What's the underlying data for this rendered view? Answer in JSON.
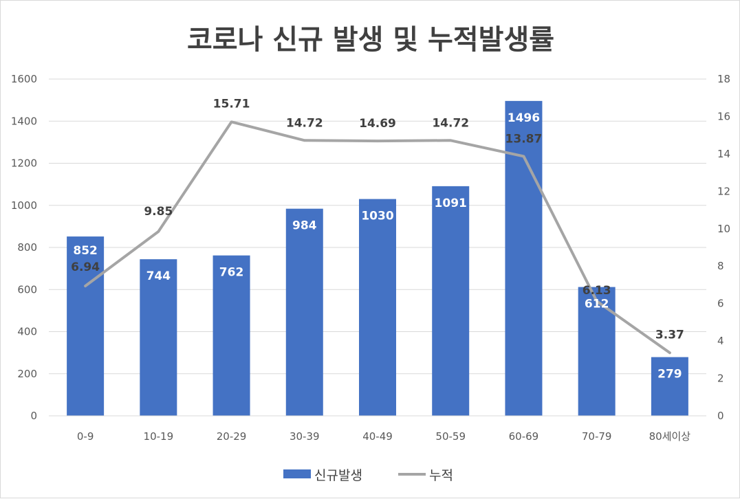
{
  "chart_data": {
    "type": "bar+line",
    "title": "코로나 신규 발생 및 누적발생률",
    "categories": [
      "0-9",
      "10-19",
      "20-29",
      "30-39",
      "40-49",
      "50-59",
      "60-69",
      "70-79",
      "80세이상"
    ],
    "series": [
      {
        "name": "신규발생",
        "type": "bar",
        "axis": "left",
        "color": "#4472c4",
        "values": [
          852,
          744,
          762,
          984,
          1030,
          1091,
          1496,
          612,
          279
        ]
      },
      {
        "name": "누적",
        "type": "line",
        "axis": "right",
        "color": "#a5a5a5",
        "values": [
          6.94,
          9.85,
          15.71,
          14.72,
          14.69,
          14.72,
          13.87,
          6.13,
          3.37
        ]
      }
    ],
    "y_left": {
      "min": 0,
      "max": 1600,
      "ticks": [
        0,
        200,
        400,
        600,
        800,
        1000,
        1200,
        1400,
        1600
      ]
    },
    "y_right": {
      "min": 0,
      "max": 18,
      "ticks": [
        0,
        2,
        4,
        6,
        8,
        10,
        12,
        14,
        16,
        18
      ]
    },
    "grid": true,
    "legend": "bottom"
  }
}
